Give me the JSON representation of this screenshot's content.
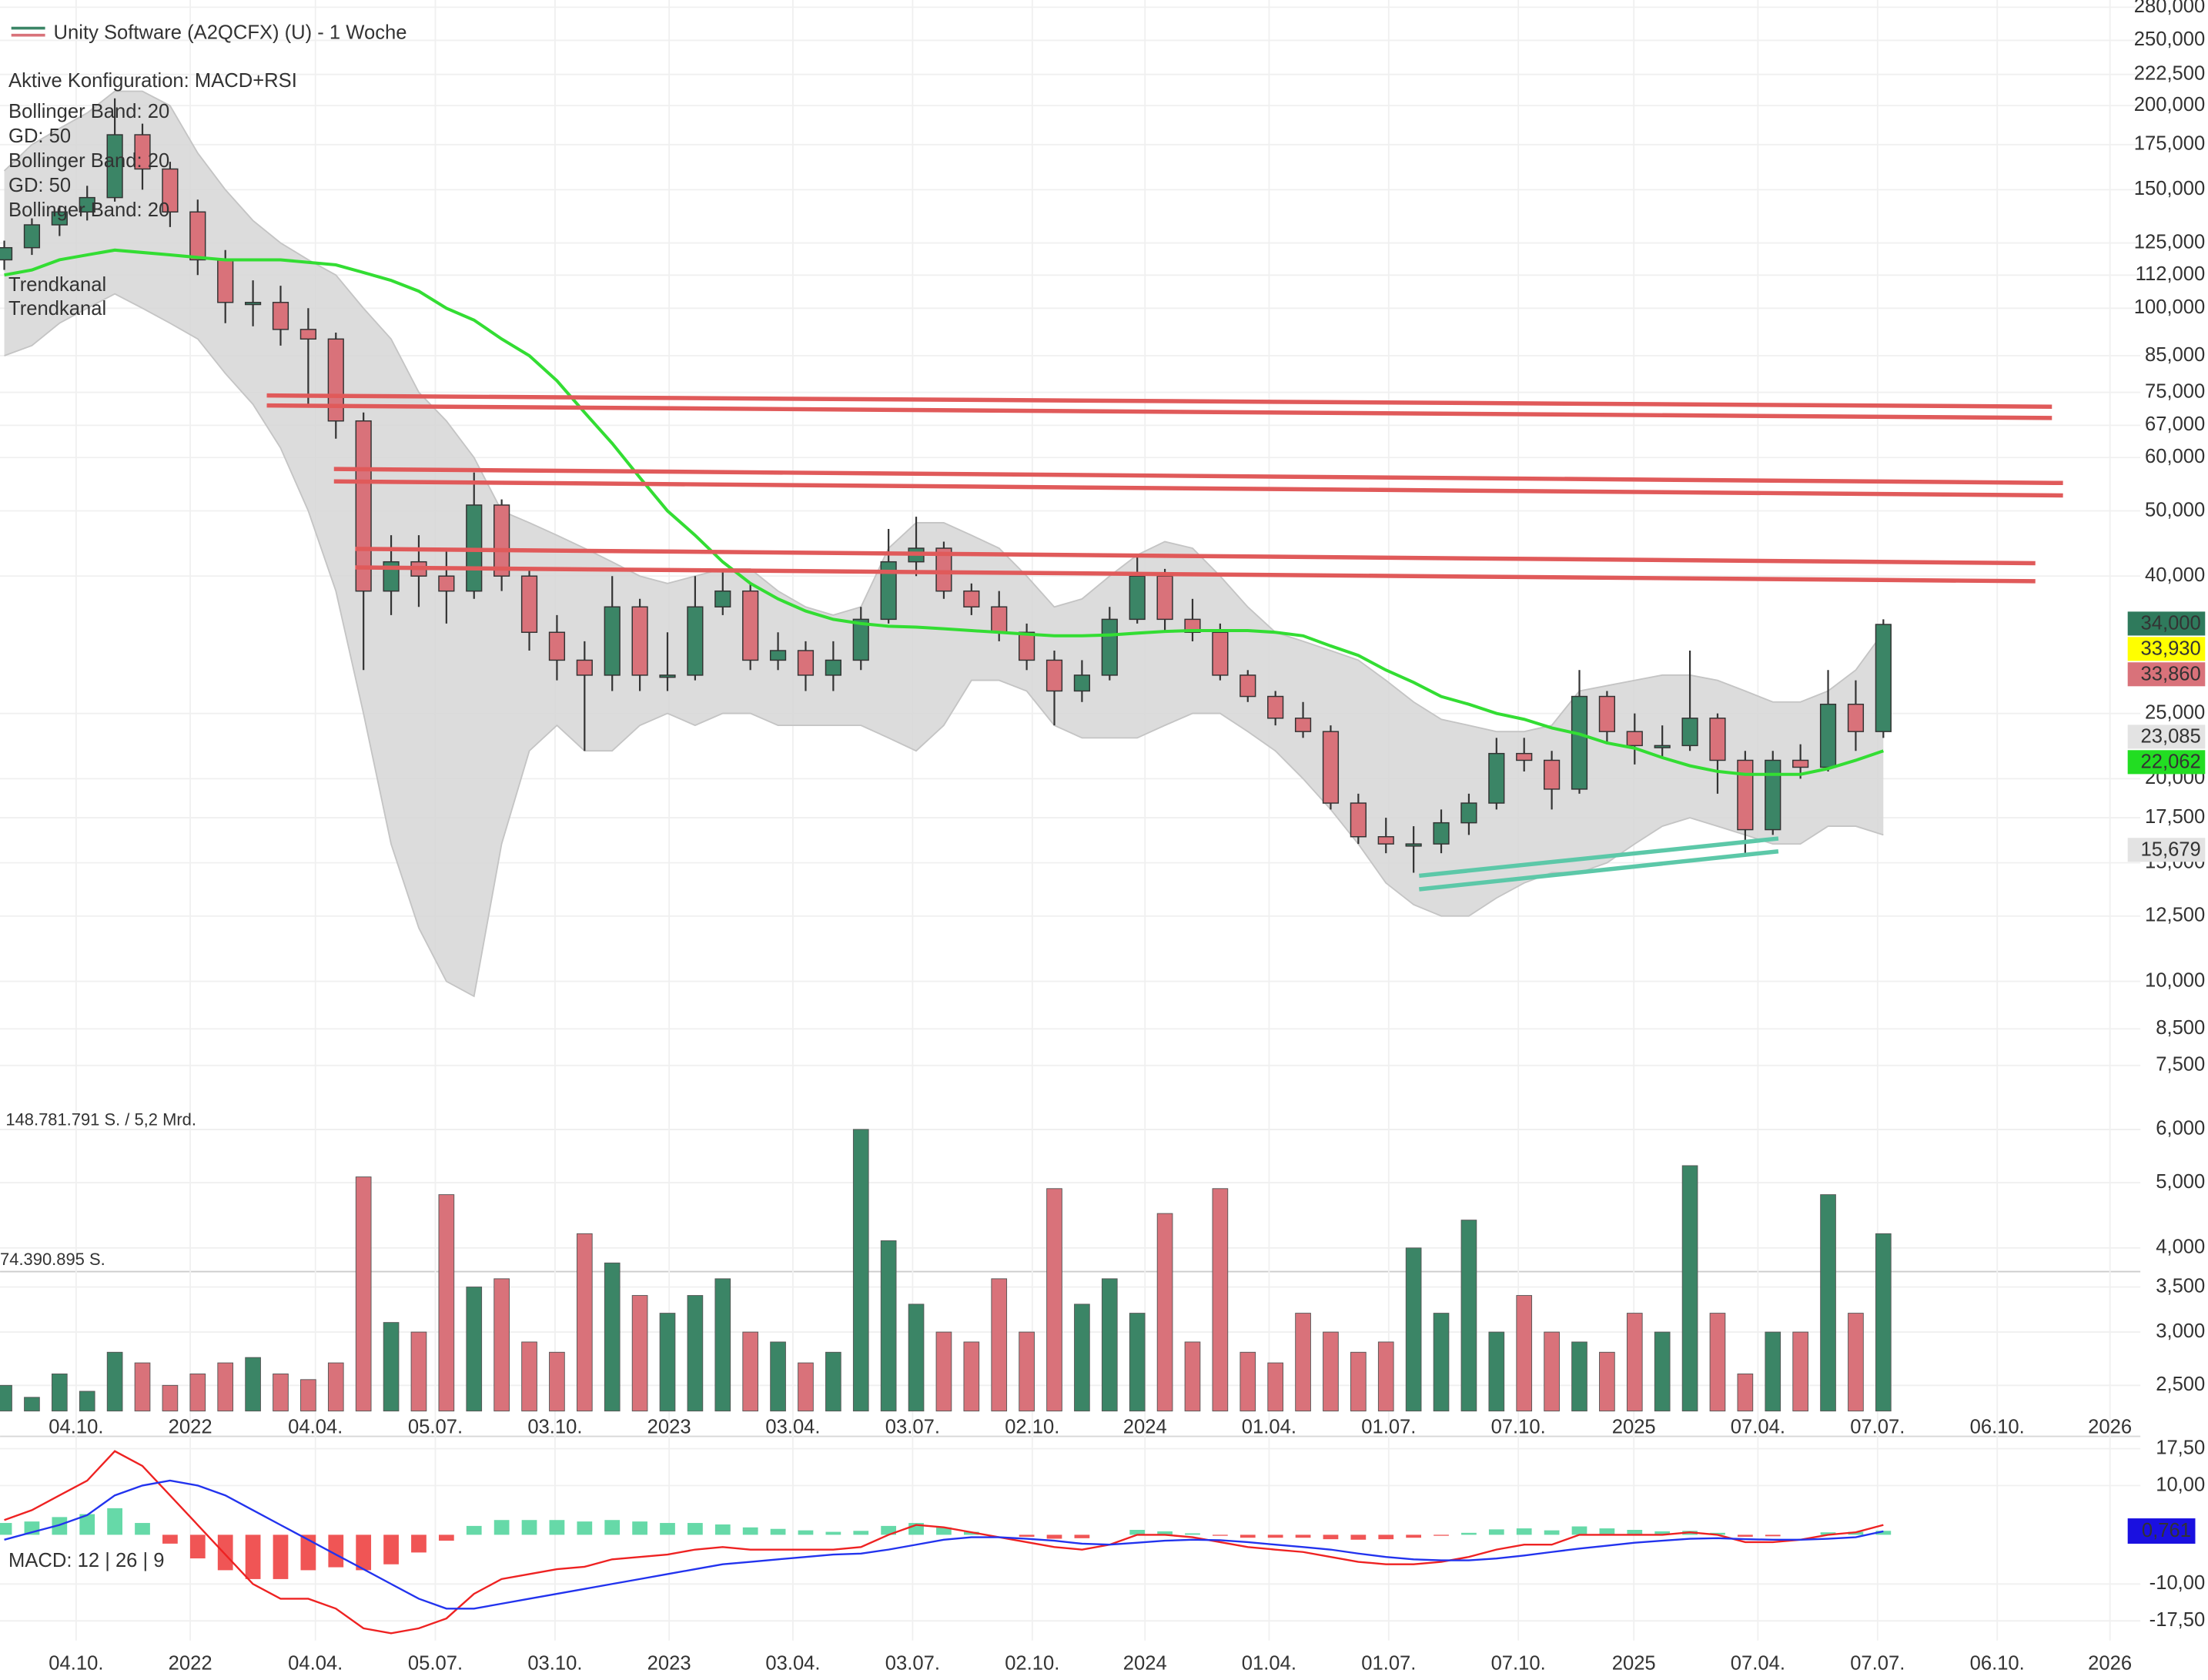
{
  "chart_data": {
    "type": "candlestick",
    "title": "Unity Software (A2QCFX) (U) - 1 Woche",
    "subtitle": "Aktive Konfiguration: MACD+RSI",
    "indicator_labels": [
      {
        "text": "Bollinger Band: 20",
        "color": "#cfcfcf"
      },
      {
        "text": "GD: 50",
        "color": "#22cc22"
      },
      {
        "text": "Bollinger Band: 20",
        "color": "#cfcfcf"
      },
      {
        "text": "GD: 50",
        "color": "#22cc22"
      },
      {
        "text": "Bollinger Band: 20",
        "color": "#cfcfcf"
      }
    ],
    "trend_labels": [
      {
        "text": "Trendkanal",
        "color": "#e86a6a"
      },
      {
        "text": "Trendkanal",
        "color": "#e86a6a"
      }
    ],
    "up_color": "#3b8566",
    "down_color": "#d9727a",
    "log_scale": true,
    "grid": true,
    "xlim": [
      0,
      77.3
    ],
    "xticks": [
      {
        "value": 2.6,
        "label": "04.10."
      },
      {
        "value": 6.73,
        "label": "2022"
      },
      {
        "value": 11.26,
        "label": "04.04."
      },
      {
        "value": 15.6,
        "label": "05.07."
      },
      {
        "value": 19.93,
        "label": "03.10."
      },
      {
        "value": 24.06,
        "label": "2023"
      },
      {
        "value": 28.54,
        "label": "03.04."
      },
      {
        "value": 32.87,
        "label": "03.07."
      },
      {
        "value": 37.2,
        "label": "02.10."
      },
      {
        "value": 41.28,
        "label": "2024"
      },
      {
        "value": 45.77,
        "label": "01.04."
      },
      {
        "value": 50.1,
        "label": "01.07."
      },
      {
        "value": 54.79,
        "label": "07.10."
      },
      {
        "value": 58.97,
        "label": "2025"
      },
      {
        "value": 63.46,
        "label": "07.04."
      },
      {
        "value": 67.79,
        "label": "07.07."
      },
      {
        "value": 72.12,
        "label": "06.10."
      },
      {
        "value": 76.2,
        "label": "2026"
      }
    ],
    "ylim": [
      6.7,
      287
    ],
    "yticks": [
      {
        "value": 280,
        "label": "280,000"
      },
      {
        "value": 250,
        "label": "250,000"
      },
      {
        "value": 222.5,
        "label": "222,500"
      },
      {
        "value": 200,
        "label": "200,000"
      },
      {
        "value": 175,
        "label": "175,000"
      },
      {
        "value": 150,
        "label": "150,000"
      },
      {
        "value": 125,
        "label": "125,000"
      },
      {
        "value": 112,
        "label": "112,000"
      },
      {
        "value": 100,
        "label": "100,000"
      },
      {
        "value": 85,
        "label": "85,000"
      },
      {
        "value": 75,
        "label": "75,000"
      },
      {
        "value": 67,
        "label": "67,000"
      },
      {
        "value": 60,
        "label": "60,000"
      },
      {
        "value": 50,
        "label": "50,000"
      },
      {
        "value": 40,
        "label": "40,000"
      },
      {
        "value": 25,
        "label": "25,000"
      },
      {
        "value": 20,
        "label": "20,000"
      },
      {
        "value": 17.5,
        "label": "17,500"
      },
      {
        "value": 15,
        "label": "15,000"
      },
      {
        "value": 12.5,
        "label": "12,500"
      },
      {
        "value": 10,
        "label": "10,000"
      },
      {
        "value": 8.5,
        "label": "8,500"
      },
      {
        "value": 7.5,
        "label": "7,500"
      }
    ],
    "ohlc": [
      [
        118,
        126,
        114,
        123
      ],
      [
        123,
        136,
        120,
        133
      ],
      [
        133,
        142,
        128,
        139
      ],
      [
        139,
        152,
        135,
        146
      ],
      [
        146,
        205,
        144,
        181
      ],
      [
        181,
        188,
        150,
        161
      ],
      [
        161,
        165,
        132,
        139
      ],
      [
        139,
        145,
        112,
        118
      ],
      [
        118,
        122,
        95,
        102
      ],
      [
        102,
        110,
        94,
        102
      ],
      [
        102,
        108,
        88,
        93
      ],
      [
        93,
        100,
        72,
        90
      ],
      [
        90,
        92,
        64,
        68
      ],
      [
        68,
        70,
        29,
        38
      ],
      [
        38,
        46,
        35,
        42
      ],
      [
        42,
        46,
        36,
        40
      ],
      [
        40,
        44,
        34,
        38
      ],
      [
        38,
        57,
        37,
        51
      ],
      [
        51,
        52,
        38,
        40
      ],
      [
        40,
        41,
        31,
        33
      ],
      [
        33,
        35,
        28,
        30
      ],
      [
        30,
        32,
        22,
        28.5
      ],
      [
        28.5,
        40,
        27,
        36
      ],
      [
        36,
        37,
        27,
        28.5
      ],
      [
        28.5,
        33,
        27,
        28.5
      ],
      [
        28.5,
        40,
        28,
        36
      ],
      [
        36,
        41,
        35,
        38
      ],
      [
        38,
        39,
        29,
        30
      ],
      [
        30,
        33,
        29,
        31
      ],
      [
        31,
        32,
        27,
        28.5
      ],
      [
        28.5,
        32,
        27,
        30
      ],
      [
        30,
        36,
        29,
        34.5
      ],
      [
        34.5,
        47,
        34,
        42
      ],
      [
        42,
        49,
        40,
        44
      ],
      [
        44,
        45,
        37,
        38
      ],
      [
        38,
        39,
        35,
        36
      ],
      [
        36,
        38,
        32,
        33
      ],
      [
        33,
        34,
        29,
        30
      ],
      [
        30,
        31,
        24,
        27
      ],
      [
        27,
        30,
        26,
        28.5
      ],
      [
        28.5,
        36,
        28,
        34.5
      ],
      [
        34.5,
        43,
        34,
        40
      ],
      [
        40,
        41,
        33,
        34.5
      ],
      [
        34.5,
        37,
        32,
        33
      ],
      [
        33,
        34,
        28,
        28.5
      ],
      [
        28.5,
        29,
        26,
        26.5
      ],
      [
        26.5,
        27,
        24,
        24.6
      ],
      [
        24.6,
        26,
        23,
        23.5
      ],
      [
        23.5,
        24,
        18,
        18.4
      ],
      [
        18.4,
        19,
        16,
        16.4
      ],
      [
        16.4,
        17.5,
        15.5,
        16
      ],
      [
        16,
        17,
        14.5,
        16
      ],
      [
        16,
        18,
        15.5,
        17.2
      ],
      [
        17.2,
        19,
        16.5,
        18.4
      ],
      [
        18.4,
        23,
        18,
        21.8
      ],
      [
        21.8,
        23,
        20.5,
        21.3
      ],
      [
        21.3,
        22,
        18,
        19.3
      ],
      [
        19.3,
        29,
        19,
        26.5
      ],
      [
        26.5,
        27,
        22.5,
        23.5
      ],
      [
        23.5,
        25,
        21,
        22.4
      ],
      [
        22.4,
        24,
        21.5,
        22.4
      ],
      [
        22.4,
        31,
        22,
        24.6
      ],
      [
        24.6,
        25,
        19,
        21.3
      ],
      [
        21.3,
        22,
        15.5,
        16.8
      ],
      [
        16.8,
        22,
        16.5,
        21.3
      ],
      [
        21.3,
        22.5,
        20,
        20.8
      ],
      [
        20.8,
        29,
        20.5,
        25.8
      ],
      [
        25.8,
        28,
        22,
        23.5
      ],
      [
        23.5,
        34.5,
        23,
        33.9
      ]
    ],
    "gd50_color": "#33dd33",
    "gd50": [
      112,
      114,
      118,
      120,
      122,
      121,
      120,
      119,
      118,
      118,
      118,
      117,
      116,
      113,
      110,
      106,
      100,
      96,
      90,
      85,
      78,
      70,
      63,
      56,
      50,
      46,
      42,
      39,
      37,
      35.5,
      34.5,
      34,
      33.7,
      33.6,
      33.4,
      33.2,
      33,
      32.8,
      32.6,
      32.6,
      32.7,
      32.9,
      33.1,
      33.2,
      33.2,
      33.2,
      33,
      32.6,
      31.5,
      30.5,
      29,
      27.8,
      26.5,
      25.8,
      25,
      24.5,
      23.8,
      23.3,
      22.6,
      22.2,
      21.5,
      20.9,
      20.5,
      20.3,
      20.3,
      20.3,
      20.7,
      21.3,
      22
    ],
    "bollinger_color": "#d6d6d6",
    "bollinger_upper": [
      160,
      175,
      185,
      195,
      210,
      210,
      200,
      170,
      150,
      135,
      125,
      118,
      112,
      100,
      90,
      75,
      68,
      60,
      50,
      48,
      46,
      44,
      42,
      40,
      39,
      40,
      41,
      41,
      38,
      36,
      35,
      36,
      44,
      48,
      48,
      46,
      44,
      40,
      36,
      37,
      40,
      43,
      45,
      44,
      40,
      36,
      33,
      32,
      31,
      30,
      28,
      26,
      24.5,
      24,
      23.5,
      23.5,
      24,
      27,
      27.5,
      28,
      28.5,
      28.5,
      28,
      27,
      26,
      26,
      27,
      29,
      33
    ],
    "bollinger_lower": [
      85,
      88,
      95,
      100,
      105,
      100,
      95,
      90,
      80,
      72,
      62,
      50,
      38,
      25,
      16,
      12,
      10,
      9.5,
      16,
      22,
      24,
      22,
      22,
      24,
      25,
      24,
      25,
      25,
      24,
      24,
      24,
      24,
      23,
      22,
      24,
      28,
      28,
      27,
      24,
      23,
      23,
      23,
      24,
      25,
      25,
      23.5,
      22,
      20,
      18,
      16,
      14,
      13,
      12.5,
      12.5,
      13.3,
      14,
      14.5,
      14.5,
      15,
      16,
      17,
      17.5,
      17,
      16.5,
      16,
      16,
      17,
      17,
      16.5
    ],
    "trendlines": [
      {
        "x": [
          9.5,
          74.1
        ],
        "y": [
          74.2,
          71.4
        ],
        "color": "#e05a5a"
      },
      {
        "x": [
          9.5,
          74.1
        ],
        "y": [
          71.7,
          68.7
        ],
        "color": "#e05a5a"
      },
      {
        "x": [
          11.93,
          74.5
        ],
        "y": [
          57.7,
          55.0
        ],
        "color": "#e05a5a"
      },
      {
        "x": [
          11.93,
          74.5
        ],
        "y": [
          55.3,
          52.7
        ],
        "color": "#e05a5a"
      },
      {
        "x": [
          12.7,
          73.5
        ],
        "y": [
          43.9,
          41.8
        ],
        "color": "#e05a5a"
      },
      {
        "x": [
          12.7,
          73.5
        ],
        "y": [
          41.2,
          39.3
        ],
        "color": "#e05a5a"
      },
      {
        "x": [
          51.2,
          64.2
        ],
        "y": [
          14.35,
          16.3
        ],
        "color": "#5cc8a8"
      },
      {
        "x": [
          51.2,
          64.2
        ],
        "y": [
          13.7,
          15.6
        ],
        "color": "#5cc8a8"
      }
    ],
    "price_labels": [
      {
        "value": 34,
        "label": "34,000",
        "bg": "#2f7a5c",
        "fg": "#ffffff"
      },
      {
        "value": 33.93,
        "label": "33,930",
        "bg": "#ffff00",
        "fg": "#000000"
      },
      {
        "value": 33.86,
        "label": "33,860",
        "bg": "#d9727a",
        "fg": "#ffffff"
      },
      {
        "value": 23.085,
        "label": "23,085",
        "bg": "#e3e3e3",
        "fg": "#000000"
      },
      {
        "value": 22.062,
        "label": "22,062",
        "bg": "#22dd22",
        "fg": "#000000"
      },
      {
        "value": 15.679,
        "label": "15,679",
        "bg": "#e3e3e3",
        "fg": "#000000"
      }
    ],
    "volume": {
      "label_max": "148.781.791 S. / 5,2 Mrd.",
      "label_mid": "74.390.895 S.",
      "log_scale": true,
      "ylim": [
        2.29,
        6.0
      ],
      "yticks": [
        {
          "value": 6,
          "label": "6,000"
        },
        {
          "value": 5,
          "label": "5,000"
        },
        {
          "value": 4,
          "label": "4,000"
        },
        {
          "value": 3.5,
          "label": "3,500"
        },
        {
          "value": 3,
          "label": "3,000"
        },
        {
          "value": 2.5,
          "label": "2,500"
        }
      ],
      "values": [
        2.5,
        2.4,
        2.6,
        2.45,
        2.8,
        2.7,
        2.5,
        2.6,
        2.7,
        2.75,
        2.6,
        2.55,
        2.7,
        5.1,
        3.1,
        3.0,
        4.8,
        3.5,
        3.6,
        2.9,
        2.8,
        4.2,
        3.8,
        3.4,
        3.2,
        3.4,
        3.6,
        3.0,
        2.9,
        2.7,
        2.8,
        6.0,
        4.1,
        3.3,
        3.0,
        2.9,
        3.6,
        3.0,
        4.9,
        3.3,
        3.6,
        3.2,
        4.5,
        2.9,
        4.9,
        2.8,
        2.7,
        3.2,
        3.0,
        2.8,
        2.9,
        4.0,
        3.2,
        4.4,
        3.0,
        3.4,
        3.0,
        2.9,
        2.8,
        3.2,
        3.0,
        5.3,
        3.2,
        2.6,
        3.0,
        3.0,
        4.8,
        3.2,
        4.2
      ]
    },
    "macd": {
      "label": "MACD: 12 | 26 | 9",
      "ylim": [
        -21.5,
        20
      ],
      "yticks": [
        {
          "value": 17.5,
          "label": "17,50"
        },
        {
          "value": 10,
          "label": "10,00"
        },
        {
          "value": -10,
          "label": "-10,00"
        },
        {
          "value": -17.5,
          "label": "-17,50"
        }
      ],
      "macd_color": "#ee2222",
      "signal_color": "#2233ee",
      "hist_up_color": "#66d9a8",
      "hist_down_color": "#f05555",
      "macd": [
        3,
        5,
        8,
        11,
        17,
        14,
        8,
        2,
        -4,
        -10,
        -13,
        -13,
        -15,
        -19,
        -20,
        -19,
        -17,
        -12,
        -9,
        -8,
        -7,
        -6.5,
        -5,
        -4.5,
        -4,
        -3,
        -2.5,
        -3,
        -3,
        -3,
        -3,
        -2.5,
        0,
        2,
        1.5,
        0.5,
        -0.5,
        -1.5,
        -2.5,
        -3,
        -2,
        0,
        0,
        -0.5,
        -1.5,
        -2.5,
        -3,
        -3.5,
        -4.5,
        -5.5,
        -6,
        -6,
        -5.5,
        -4.5,
        -3,
        -2,
        -2,
        0,
        0,
        0,
        0,
        0.5,
        0,
        -1.5,
        -1.5,
        -1,
        0,
        0.5,
        2
      ],
      "signal": [
        -1,
        0.5,
        2,
        4,
        8,
        10,
        11,
        10,
        8,
        5,
        2,
        -1,
        -4,
        -7,
        -10,
        -13,
        -15,
        -15,
        -14,
        -13,
        -12,
        -11,
        -10,
        -9,
        -8,
        -7,
        -6,
        -5.5,
        -5,
        -4.5,
        -4,
        -3.8,
        -3,
        -2,
        -1,
        -0.5,
        -0.5,
        -0.8,
        -1.2,
        -1.8,
        -2,
        -1.6,
        -1.2,
        -1,
        -1.1,
        -1.5,
        -2,
        -2.5,
        -3,
        -3.8,
        -4.5,
        -5,
        -5.2,
        -5.2,
        -4.8,
        -4.2,
        -3.5,
        -2.8,
        -2.2,
        -1.6,
        -1.2,
        -0.8,
        -0.7,
        -0.9,
        -1,
        -1,
        -0.8,
        -0.5,
        0.7
      ],
      "histogram": [
        2.4,
        2.7,
        3.6,
        4.2,
        5.4,
        2.4,
        -1.8,
        -4.8,
        -7.2,
        -9,
        -9,
        -7.2,
        -6.6,
        -7.2,
        -6,
        -3.6,
        -1.2,
        1.8,
        3,
        3,
        3,
        2.7,
        3,
        2.7,
        2.4,
        2.4,
        2.1,
        1.5,
        1.2,
        0.9,
        0.6,
        0.8,
        1.8,
        2.4,
        1.5,
        0.6,
        0,
        -0.4,
        -0.8,
        -0.7,
        0,
        1,
        0.7,
        0.3,
        -0.2,
        -0.6,
        -0.6,
        -0.6,
        -0.9,
        -1,
        -0.9,
        -0.6,
        -0.2,
        0.4,
        1.1,
        1.3,
        0.9,
        1.7,
        1.3,
        1,
        0.7,
        0.8,
        0.4,
        -0.4,
        -0.3,
        0,
        0.5,
        0.6,
        0.8
      ],
      "last_label": {
        "value": 0.761,
        "label": "0,761",
        "bg": "#1a10e0",
        "fg": "#ffffff"
      }
    }
  }
}
